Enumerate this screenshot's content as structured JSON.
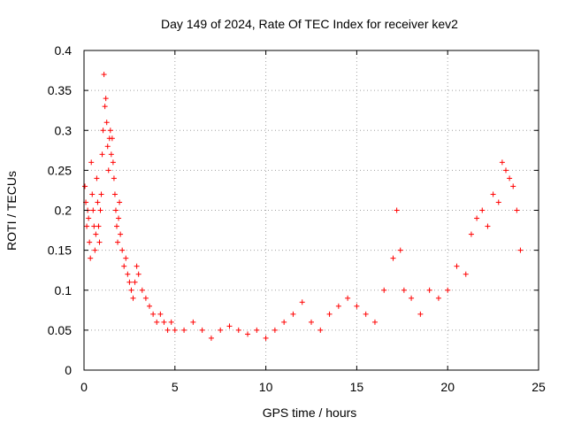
{
  "chart_data": {
    "type": "scatter",
    "title": "Day 149 of 2024, Rate Of TEC Index for receiver kev2",
    "xlabel": "GPS time / hours",
    "ylabel": "ROTI / TECUs",
    "xlim": [
      0,
      25
    ],
    "ylim": [
      0,
      0.4
    ],
    "x_ticks": [
      0,
      5,
      10,
      15,
      20,
      25
    ],
    "x_tick_labels": [
      "0",
      "5",
      "10",
      "15",
      "20",
      "25"
    ],
    "y_ticks": [
      0,
      0.05,
      0.1,
      0.15,
      0.2,
      0.25,
      0.3,
      0.35,
      0.4
    ],
    "y_tick_labels": [
      "0",
      "0.05",
      "0.1",
      "0.15",
      "0.2",
      "0.25",
      "0.3",
      "0.35",
      "0.4"
    ],
    "grid": true,
    "marker": "+",
    "series": [
      {
        "name": "ROTI",
        "color": "#ff0000",
        "x": [
          0.05,
          0.1,
          0.15,
          0.2,
          0.25,
          0.3,
          0.35,
          0.4,
          0.45,
          0.5,
          0.55,
          0.6,
          0.65,
          0.7,
          0.75,
          0.8,
          0.85,
          0.9,
          0.95,
          1.0,
          1.05,
          1.1,
          1.15,
          1.2,
          1.25,
          1.3,
          1.35,
          1.4,
          1.45,
          1.5,
          1.55,
          1.6,
          1.65,
          1.7,
          1.75,
          1.8,
          1.85,
          1.9,
          1.95,
          2.0,
          2.1,
          2.2,
          2.3,
          2.4,
          2.5,
          2.6,
          2.7,
          2.8,
          2.9,
          3.0,
          3.2,
          3.4,
          3.6,
          3.8,
          4.0,
          4.2,
          4.4,
          4.6,
          4.8,
          5.0,
          5.5,
          6.0,
          6.5,
          7.0,
          7.5,
          8.0,
          8.5,
          9.0,
          9.5,
          10.0,
          10.5,
          11.0,
          11.5,
          12.0,
          12.5,
          13.0,
          13.5,
          14.0,
          14.5,
          15.0,
          15.5,
          16.0,
          16.5,
          17.0,
          17.2,
          17.4,
          17.6,
          18.0,
          18.5,
          19.0,
          19.5,
          20.0,
          20.5,
          21.0,
          21.3,
          21.6,
          21.9,
          22.2,
          22.5,
          22.8,
          23.0,
          23.2,
          23.4,
          23.6,
          23.8,
          24.0
        ],
        "y": [
          0.23,
          0.21,
          0.18,
          0.2,
          0.19,
          0.16,
          0.14,
          0.26,
          0.22,
          0.2,
          0.18,
          0.15,
          0.17,
          0.24,
          0.21,
          0.18,
          0.16,
          0.2,
          0.22,
          0.27,
          0.3,
          0.37,
          0.33,
          0.34,
          0.31,
          0.28,
          0.25,
          0.29,
          0.3,
          0.27,
          0.29,
          0.26,
          0.24,
          0.22,
          0.2,
          0.18,
          0.16,
          0.19,
          0.21,
          0.17,
          0.15,
          0.13,
          0.14,
          0.12,
          0.11,
          0.1,
          0.09,
          0.11,
          0.13,
          0.12,
          0.1,
          0.09,
          0.08,
          0.07,
          0.06,
          0.07,
          0.06,
          0.05,
          0.06,
          0.05,
          0.05,
          0.06,
          0.05,
          0.04,
          0.05,
          0.055,
          0.05,
          0.045,
          0.05,
          0.04,
          0.05,
          0.06,
          0.07,
          0.085,
          0.06,
          0.05,
          0.07,
          0.08,
          0.09,
          0.08,
          0.07,
          0.06,
          0.1,
          0.14,
          0.2,
          0.15,
          0.1,
          0.09,
          0.07,
          0.1,
          0.09,
          0.1,
          0.13,
          0.12,
          0.17,
          0.19,
          0.2,
          0.18,
          0.22,
          0.21,
          0.26,
          0.25,
          0.24,
          0.23,
          0.2,
          0.15
        ]
      }
    ]
  }
}
